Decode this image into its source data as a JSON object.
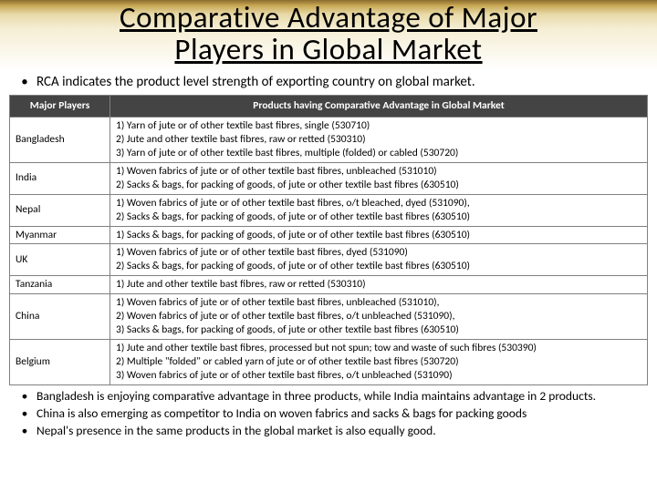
{
  "title": {
    "line1": "Comparative Advantage of Major",
    "line2": "Players  in Global Market"
  },
  "intro": "RCA indicates the product level strength of exporting country on global market.",
  "table": {
    "headers": {
      "col1": "Major Players",
      "col2": "Products having Comparative Advantage in Global Market"
    },
    "rows": [
      {
        "country": "Bangladesh",
        "products": "1)     Yarn of jute or of other textile bast fibres, single (530710)\n2)     Jute and other textile bast fibres, raw or retted (530310)\n3)     Yarn of jute or of other textile bast fibres, multiple (folded) or cabled (530720)"
      },
      {
        "country": "India",
        "products": "1)     Woven fabrics of jute or of other textile bast fibres, unbleached (531010)\n2)     Sacks & bags, for packing of goods, of jute or other textile bast fibres (630510)"
      },
      {
        "country": "Nepal",
        "products": "1)     Woven fabrics of jute or of other textile bast fibres, o/t bleached, dyed (531090),\n2)     Sacks & bags, for packing of goods, of jute or of other textile bast fibres (630510)"
      },
      {
        "country": "Myanmar",
        "products": "1) Sacks & bags, for packing of goods, of jute or of other textile bast fibres (630510)"
      },
      {
        "country": "UK",
        "products": "1) Woven fabrics of jute or of other textile bast fibres,  dyed (531090)\n2) Sacks & bags, for packing of goods, of jute or of other textile bast fibres (630510)"
      },
      {
        "country": "Tanzania",
        "products": "1) Jute and other textile bast fibres, raw or retted (530310)"
      },
      {
        "country": "China",
        "products": "1)     Woven fabrics of jute or of other textile bast fibres, unbleached (531010),\n2)     Woven fabrics of jute or of other textile bast fibres, o/t unbleached (531090),\n3)     Sacks & bags, for packing of goods, of jute or other textile bast fibres (630510)"
      },
      {
        "country": "Belgium",
        "products": "1) Jute and other textile bast fibres, processed but not spun; tow and waste of such fibres (530390)\n2) Multiple \"folded\" or cabled yarn of jute or of other textile bast fibres (530720)\n3) Woven fabrics of jute or of other textile bast fibres, o/t unbleached (531090)"
      }
    ]
  },
  "notes": [
    "Bangladesh is enjoying comparative advantage in three products, while India maintains advantage in 2 products.",
    "China is also emerging as  competitor to India on  woven fabrics and sacks  & bags for packing goods",
    "Nepal's presence in the same products in the global market is also equally good."
  ],
  "style": {
    "title_font_size": 33,
    "title_color": "#000000",
    "header_bg": "#444444",
    "header_fg": "#ffffff",
    "border_color": "#808080",
    "body_bg": "#ffffff",
    "gradient_stops": [
      "#8b6b2e",
      "#c9a855",
      "#e8d9a8",
      "#f5eed4",
      "#ffffff"
    ]
  }
}
